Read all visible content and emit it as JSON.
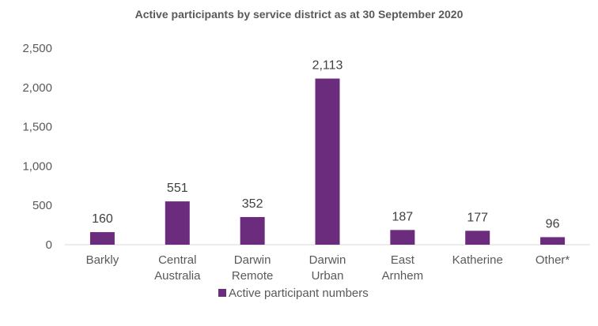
{
  "chart_data": {
    "type": "bar",
    "title": "Active participants by service district as at 30 September 2020",
    "categories": [
      [
        "Barkly"
      ],
      [
        "Central",
        "Australia"
      ],
      [
        "Darwin",
        "Remote"
      ],
      [
        "Darwin",
        "Urban"
      ],
      [
        "East",
        "Arnhem"
      ],
      [
        "Katherine"
      ],
      [
        "Other*"
      ]
    ],
    "series": [
      {
        "name": "Active participant numbers",
        "values": [
          160,
          551,
          352,
          2113,
          187,
          177,
          96
        ],
        "value_labels": [
          "160",
          "551",
          "352",
          "2,113",
          "187",
          "177",
          "96"
        ],
        "color": "#6B2C7E"
      }
    ],
    "ylim": [
      0,
      2500
    ],
    "yticks": [
      "0",
      "500",
      "1,000",
      "1,500",
      "2,000",
      "2,500"
    ],
    "ytick_values": [
      0,
      500,
      1000,
      1500,
      2000,
      2500
    ],
    "grid": false,
    "legend_position": "bottom"
  }
}
